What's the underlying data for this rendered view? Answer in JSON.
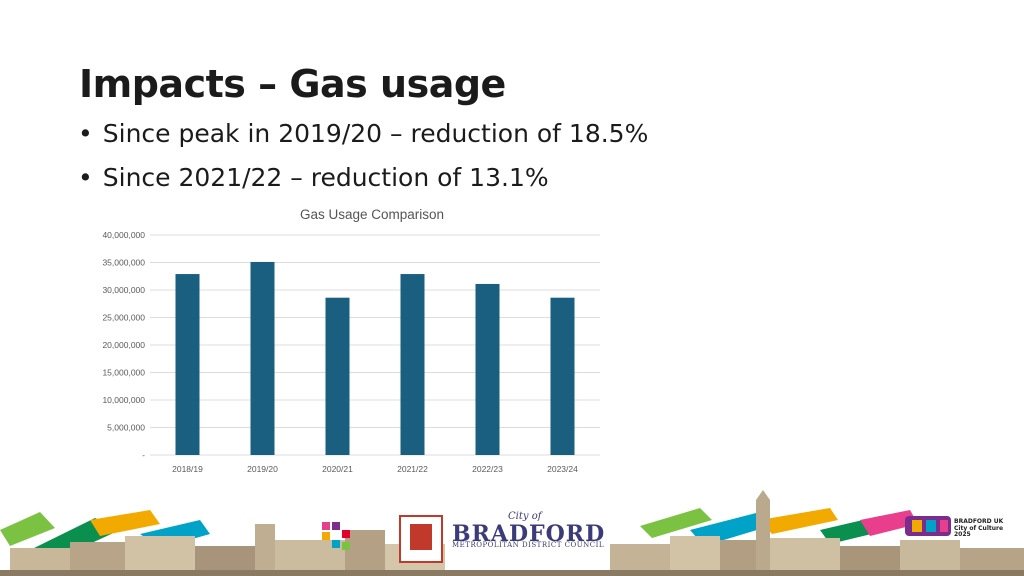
{
  "slide": {
    "title": "Impacts – Gas usage",
    "bullets": [
      "Since peak in 2019/20 – reduction of 18.5%",
      "Since 2021/22 – reduction of 13.1%"
    ]
  },
  "chart_data": {
    "type": "bar",
    "title": "Gas Usage Comparison",
    "categories": [
      "2018/19",
      "2019/20",
      "2020/21",
      "2021/22",
      "2022/23",
      "2023/24"
    ],
    "values": [
      32900000,
      35100000,
      28600000,
      32900000,
      31100000,
      28600000
    ],
    "ylim": [
      0,
      40000000
    ],
    "yticks": [
      0,
      5000000,
      10000000,
      15000000,
      20000000,
      25000000,
      30000000,
      35000000,
      40000000
    ],
    "ytick_labels": [
      "-",
      "5,000,000",
      "10,000,000",
      "15,000,000",
      "20,000,000",
      "25,000,000",
      "30,000,000",
      "35,000,000",
      "40,000,000"
    ],
    "grid": true,
    "legend": "none",
    "bar_color": "#1a5f80"
  },
  "footer": {
    "council_city": "City of",
    "council_name": "BRADFORD",
    "council_sub": "METROPOLITAN DISTRICT COUNCIL",
    "culture_text": "BRADFORD UK City of Culture 2025"
  }
}
